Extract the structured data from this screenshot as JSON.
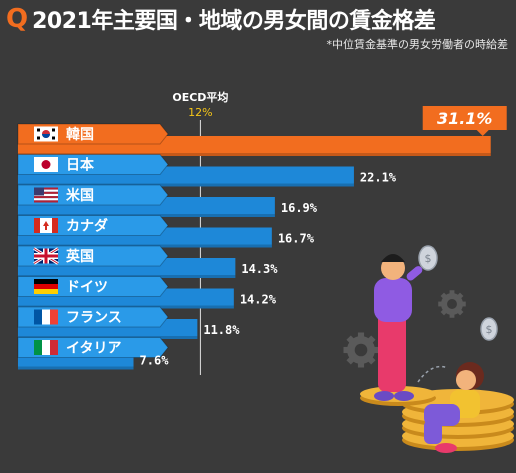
{
  "header": {
    "q_mark": "Q",
    "title": "2021年主要国・地域の男女間の賃金格差",
    "subtitle": "*中位賃金基準の男女労働者の時給差"
  },
  "colors": {
    "background": "#3a3a3a",
    "bar_blue": "#1e88d8",
    "bar_orange": "#f26d1f",
    "tab_blue": "#2a9ae8",
    "oecd_line": "#e0e0e0",
    "oecd_value": "#f5c518"
  },
  "chart_data": {
    "type": "bar",
    "orientation": "horizontal",
    "categories": [
      "韓国",
      "日本",
      "米国",
      "カナダ",
      "英国",
      "ドイツ",
      "フランス",
      "イタリア"
    ],
    "values": [
      31.1,
      22.1,
      16.9,
      16.7,
      14.3,
      14.2,
      11.8,
      7.6
    ],
    "value_labels": [
      "31.1%",
      "22.1%",
      "16.9%",
      "16.7%",
      "14.3%",
      "14.2%",
      "11.8%",
      "7.6%"
    ],
    "highlight_index": 0,
    "flag_icons": [
      "korea-flag-icon",
      "japan-flag-icon",
      "usa-flag-icon",
      "canada-flag-icon",
      "uk-flag-icon",
      "germany-flag-icon",
      "france-flag-icon",
      "italy-flag-icon"
    ],
    "reference_line": {
      "label": "OECD平均",
      "value": 12,
      "value_label": "12%"
    },
    "xlim": [
      0,
      31.1
    ]
  },
  "illustration": {
    "items": [
      "man-worried-figure",
      "woman-sitting-figure",
      "coin-stack-icon",
      "gear-icon",
      "dollar-coin-icon"
    ]
  }
}
